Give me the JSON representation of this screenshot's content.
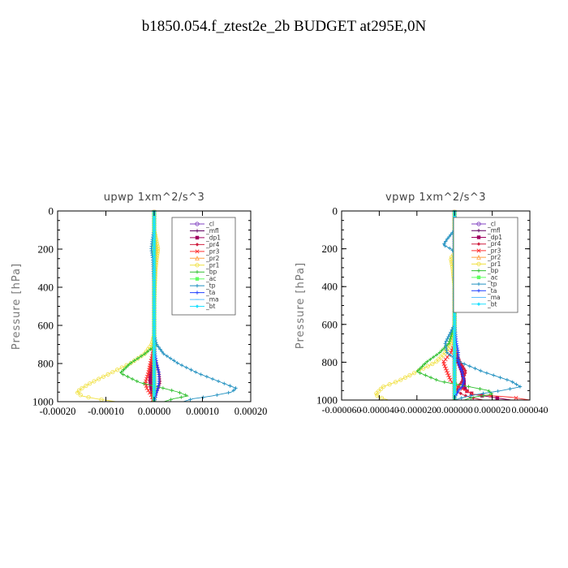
{
  "figure": {
    "title": "b1850.054.f_ztest2e_2b  BUDGET at295E,0N"
  },
  "chart_data": [
    {
      "type": "line",
      "title": "upwp   1xm^2/s^3",
      "ylabel": "Pressure [hPa]",
      "xlabel": "",
      "xlim": [
        -0.0002,
        0.0002
      ],
      "ylim": [
        1000,
        0
      ],
      "xticks": [
        -0.0002,
        -0.0001,
        0,
        0.0001,
        0.0002
      ],
      "xtick_labels": [
        "-0.00020",
        "-0.00010",
        "0.00000",
        "0.00010",
        "0.00020"
      ],
      "yticks": [
        0,
        200,
        400,
        600,
        800,
        1000
      ],
      "ytick_labels": [
        "0",
        "200",
        "400",
        "600",
        "800",
        "1000"
      ],
      "legend_position": "top-right",
      "y": [
        0,
        100,
        150,
        200,
        250,
        300,
        400,
        500,
        600,
        650,
        700,
        750,
        800,
        850,
        900,
        930,
        950,
        970,
        985,
        1000
      ],
      "series": [
        {
          "name": "_cl",
          "color": "#8040c0",
          "values": [
            0,
            0,
            0,
            0,
            0,
            0,
            0,
            0,
            0,
            0,
            0,
            0,
            0,
            0,
            0,
            0,
            0,
            0,
            0,
            0
          ]
        },
        {
          "name": "_mfl",
          "color": "#600060",
          "values": [
            0,
            0,
            0,
            0,
            0,
            0,
            0,
            0,
            0,
            0,
            0,
            0,
            0,
            0,
            0,
            0,
            0,
            0,
            0,
            0
          ]
        },
        {
          "name": "_dp1",
          "color": "#a00060",
          "values": [
            0,
            0,
            0,
            0,
            0,
            0,
            0,
            0,
            0,
            0,
            0,
            -2e-06,
            -5e-06,
            -8e-06,
            -8e-06,
            -6e-06,
            -4e-06,
            -3e-06,
            -2e-06,
            0
          ]
        },
        {
          "name": "_pr4",
          "color": "#d02040",
          "values": [
            0,
            0,
            0,
            0,
            0,
            0,
            0,
            0,
            0,
            0,
            0,
            0,
            5e-06,
            1e-05,
            1.2e-05,
            8e-06,
            5e-06,
            3e-06,
            2e-06,
            0
          ]
        },
        {
          "name": "_pr3",
          "color": "#ff3030",
          "values": [
            0,
            0,
            0,
            0,
            0,
            0,
            0,
            0,
            0,
            0,
            0,
            -3e-06,
            -8e-06,
            -1.2e-05,
            -1.8e-05,
            -1.5e-05,
            -1e-05,
            -5e-06,
            -3e-06,
            0
          ]
        },
        {
          "name": "_pr2",
          "color": "#ffa040",
          "values": [
            0,
            0,
            2e-06,
            5e-06,
            3e-06,
            2e-06,
            0,
            0,
            0,
            0,
            0,
            0,
            0,
            0,
            0,
            0,
            0,
            0,
            0,
            0
          ]
        },
        {
          "name": "_pr1",
          "color": "#f0e040",
          "values": [
            0,
            0,
            4e-06,
            8e-06,
            5e-06,
            3e-06,
            1e-06,
            0,
            0,
            0,
            -5e-06,
            -2e-05,
            -5e-05,
            -9e-05,
            -0.00013,
            -0.00015,
            -0.00016,
            -0.00015,
            -0.00012,
            -8e-05
          ]
        },
        {
          "name": "_bp",
          "color": "#30c030",
          "values": [
            0,
            0,
            0,
            0,
            0,
            0,
            0,
            0,
            0,
            0,
            5e-06,
            -2e-05,
            -5e-05,
            -7e-05,
            -3e-05,
            2e-05,
            5e-05,
            7e-05,
            4e-05,
            2e-05
          ]
        },
        {
          "name": "_ac",
          "color": "#60ff60",
          "values": [
            0,
            0,
            0,
            0,
            0,
            0,
            0,
            0,
            0,
            0,
            0,
            0,
            0,
            0,
            0,
            0,
            0,
            0,
            0,
            0
          ]
        },
        {
          "name": "_tp",
          "color": "#2090c0",
          "values": [
            0,
            0,
            -4e-06,
            -6e-06,
            -3e-06,
            -2e-06,
            0,
            0,
            0,
            0,
            5e-06,
            2e-05,
            5e-05,
            9e-05,
            0.00014,
            0.00017,
            0.00016,
            0.00012,
            8e-05,
            6e-05
          ]
        },
        {
          "name": "_ta",
          "color": "#2040ff",
          "values": [
            0,
            0,
            0,
            0,
            0,
            0,
            0,
            0,
            0,
            0,
            0,
            2e-06,
            5e-06,
            1e-05,
            1e-05,
            8e-06,
            5e-06,
            3e-06,
            2e-06,
            0
          ]
        },
        {
          "name": "_ma",
          "color": "#60c0ff",
          "values": [
            0,
            0,
            0,
            0,
            0,
            0,
            0,
            0,
            0,
            0,
            0,
            0,
            0,
            0,
            0,
            0,
            0,
            0,
            0,
            0
          ]
        },
        {
          "name": "_bt",
          "color": "#20e0ff",
          "values": [
            0,
            0,
            0,
            0,
            0,
            0,
            0,
            0,
            0,
            0,
            0,
            0,
            0,
            0,
            0,
            0,
            0,
            0,
            0,
            0
          ]
        }
      ]
    },
    {
      "type": "line",
      "title": "vpwp   1xm^2/s^3",
      "ylabel": "Pressure [hPa]",
      "xlabel": "",
      "xlim": [
        -6e-05,
        4e-05
      ],
      "ylim": [
        1000,
        0
      ],
      "xticks": [
        -6e-05,
        -4e-05,
        -2e-05,
        0,
        2e-05,
        4e-05
      ],
      "xtick_labels": [
        "-0.000060",
        "-0.000040",
        "-0.000020",
        "0.000000",
        "0.000020",
        "0.000040"
      ],
      "yticks": [
        0,
        200,
        400,
        600,
        800,
        1000
      ],
      "ytick_labels": [
        "0",
        "200",
        "400",
        "600",
        "800",
        "1000"
      ],
      "legend_position": "top-right",
      "y": [
        0,
        100,
        150,
        180,
        200,
        250,
        300,
        400,
        500,
        600,
        700,
        750,
        800,
        850,
        900,
        930,
        950,
        970,
        985,
        1000
      ],
      "series": [
        {
          "name": "_cl",
          "color": "#8040c0",
          "values": [
            0,
            0,
            0,
            0,
            0,
            0,
            0,
            0,
            0,
            0,
            0,
            0,
            0,
            0,
            0,
            0,
            0,
            0,
            0,
            0
          ]
        },
        {
          "name": "_mfl",
          "color": "#600060",
          "values": [
            0,
            0,
            0,
            0,
            0,
            0,
            0,
            0,
            0,
            0,
            0,
            0,
            0,
            0,
            0,
            0,
            0,
            0,
            0,
            0
          ]
        },
        {
          "name": "_dp1",
          "color": "#a00060",
          "values": [
            0,
            0,
            0,
            0,
            0,
            0,
            0,
            0,
            0,
            0,
            0,
            0,
            2e-06,
            4e-06,
            5e-06,
            5e-06,
            6e-06,
            1e-05,
            2e-05,
            3e-05
          ]
        },
        {
          "name": "_pr4",
          "color": "#d02040",
          "values": [
            0,
            0,
            0,
            0,
            0,
            0,
            0,
            0,
            0,
            0,
            0,
            1e-06,
            3e-06,
            6e-06,
            4e-06,
            2e-06,
            1e-06,
            4e-06,
            8e-06,
            1.5e-05
          ]
        },
        {
          "name": "_pr3",
          "color": "#ff3030",
          "values": [
            0,
            0,
            2e-06,
            3e-06,
            3e-06,
            2e-06,
            1e-06,
            0,
            0,
            0,
            0,
            -2e-06,
            -6e-06,
            -4e-06,
            -2e-06,
            2e-06,
            6e-06,
            1e-05,
            3e-05,
            4e-05
          ]
        },
        {
          "name": "_pr2",
          "color": "#ffa040",
          "values": [
            0,
            0,
            1e-06,
            2e-06,
            2e-06,
            1e-06,
            0,
            0,
            0,
            0,
            0,
            0,
            0,
            0,
            0,
            0,
            0,
            0,
            0,
            0
          ]
        },
        {
          "name": "_pr1",
          "color": "#f0e040",
          "values": [
            0,
            0,
            3e-06,
            4e-06,
            2e-06,
            -2e-06,
            -1e-06,
            0,
            0,
            0,
            -2e-06,
            -5e-06,
            -1e-05,
            -2e-05,
            -3e-05,
            -3.8e-05,
            -4e-05,
            -4.2e-05,
            -4e-05,
            -3.5e-05
          ]
        },
        {
          "name": "_bp",
          "color": "#30c030",
          "values": [
            0,
            0,
            0,
            0,
            0,
            0,
            0,
            0,
            0,
            0,
            -3e-06,
            -8e-06,
            -1.5e-05,
            -2e-05,
            -8e-06,
            8e-06,
            1.8e-05,
            2e-05,
            1e-05,
            5e-06
          ]
        },
        {
          "name": "_ac",
          "color": "#60ff60",
          "values": [
            0,
            0,
            0,
            0,
            0,
            0,
            0,
            0,
            0,
            0,
            0,
            0,
            0,
            0,
            0,
            0,
            0,
            0,
            0,
            0
          ]
        },
        {
          "name": "_tp",
          "color": "#2090c0",
          "values": [
            0,
            0,
            -4e-06,
            -6e-06,
            -2e-06,
            3e-06,
            2e-06,
            0,
            0,
            0,
            -5e-06,
            -4e-06,
            3e-06,
            1.5e-05,
            3e-05,
            3.5e-05,
            2.5e-05,
            1.2e-05,
            5e-06,
            0
          ]
        },
        {
          "name": "_ta",
          "color": "#2040ff",
          "values": [
            0,
            0,
            1e-06,
            0,
            1e-06,
            0,
            0,
            0,
            0,
            0,
            1e-06,
            2e-06,
            2e-06,
            4e-06,
            5e-06,
            4e-06,
            2e-06,
            1e-06,
            0,
            0
          ]
        },
        {
          "name": "_ma",
          "color": "#60c0ff",
          "values": [
            0,
            0,
            0,
            0,
            0,
            0,
            0,
            0,
            0,
            0,
            0,
            0,
            0,
            0,
            0,
            0,
            0,
            0,
            0,
            0
          ]
        },
        {
          "name": "_bt",
          "color": "#20e0ff",
          "values": [
            0,
            0,
            0,
            0,
            0,
            0,
            0,
            0,
            0,
            0,
            0,
            0,
            0,
            0,
            0,
            0,
            0,
            0,
            0,
            0
          ]
        }
      ]
    }
  ]
}
